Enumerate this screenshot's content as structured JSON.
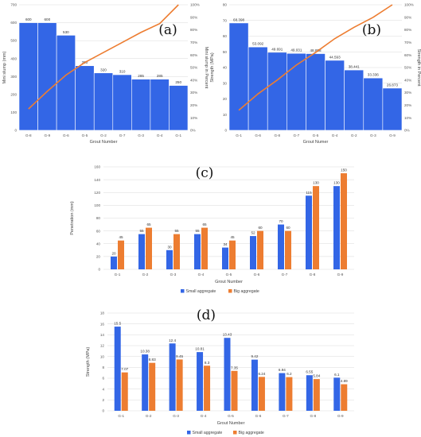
{
  "chart_data": [
    {
      "type": "bar",
      "panel_label": "(a)",
      "categories": [
        "G-8",
        "G-9",
        "G-6",
        "G-5",
        "G-2",
        "G-7",
        "G-3",
        "G-4",
        "G-1"
      ],
      "series": [
        {
          "values": [
            600,
            600,
            530,
            360,
            320,
            310,
            285,
            285,
            250
          ],
          "color": "#3366e6"
        },
        {
          "values": [
            17,
            31,
            44,
            54,
            62,
            70,
            78,
            85,
            100
          ],
          "color": "#ed7d31",
          "axis": "right",
          "type": "line"
        }
      ],
      "xlabel": "Grout Number",
      "ylabel": "Mini slump (mm)",
      "y2label": "Mini slump in Percent",
      "ylim": [
        0,
        700
      ],
      "ytick_step": 100,
      "y2lim": [
        0,
        100
      ],
      "y2tick_step": 10,
      "y2_suffix": "%",
      "grid": true
    },
    {
      "type": "bar",
      "panel_label": "(b)",
      "categories": [
        "G-1",
        "G-6",
        "G-8",
        "G-7",
        "G-5",
        "G-4",
        "G-2",
        "G-3",
        "G-9"
      ],
      "series": [
        {
          "values": [
            68.398,
            53.092,
            49.691,
            49.031,
            48.858,
            44.593,
            38.441,
            33.336,
            26.873
          ],
          "color": "#3366e6"
        },
        {
          "values": [
            16,
            29,
            40,
            52,
            62,
            73,
            82,
            90,
            100
          ],
          "color": "#ed7d31",
          "axis": "right",
          "type": "line"
        }
      ],
      "xlabel": "Grout Numer",
      "ylabel": "Strength (MPa)",
      "y2label": "Strength in Percent",
      "ylim": [
        0,
        80
      ],
      "ytick_step": 10,
      "y2lim": [
        0,
        100
      ],
      "y2tick_step": 10,
      "y2_suffix": "%",
      "grid": true
    },
    {
      "type": "bar",
      "panel_label": "(c)",
      "categories": [
        "G-1",
        "G-2",
        "G-3",
        "G-4",
        "G-5",
        "G-6",
        "G-7",
        "G-8",
        "G-9"
      ],
      "series": [
        {
          "name": "Small aggregate",
          "values": [
            20,
            55,
            30,
            55,
            34,
            52,
            70,
            115,
            130
          ],
          "color": "#3366e6"
        },
        {
          "name": "Big aggregate",
          "values": [
            45,
            65,
            55,
            65,
            45,
            60,
            60,
            130,
            150
          ],
          "color": "#ed7d31"
        }
      ],
      "xlabel": "Grout Number",
      "ylabel": "Penetration (mm)",
      "ylim": [
        0,
        160
      ],
      "ytick_step": 20,
      "legend": "bottom",
      "grid": true
    },
    {
      "type": "bar",
      "panel_label": "(d)",
      "categories": [
        "G-1",
        "G-2",
        "G-3",
        "G-4",
        "G-5",
        "G-6",
        "G-7",
        "G-8",
        "G-9"
      ],
      "series": [
        {
          "name": "Small aggregate",
          "values": [
            15.5,
            10.38,
            12.4,
            10.81,
            13.43,
            9.42,
            6.94,
            6.55,
            6.1
          ],
          "color": "#3366e6"
        },
        {
          "name": "Big aggregate",
          "values": [
            7.07,
            8.83,
            9.45,
            8.3,
            7.35,
            6.24,
            6.2,
            5.84,
            4.89
          ],
          "color": "#ed7d31"
        }
      ],
      "xlabel": "Grout Number",
      "ylabel": "Strength (MPa)",
      "ylim": [
        0,
        18
      ],
      "ytick_step": 2,
      "legend": "bottom",
      "grid": true
    }
  ]
}
